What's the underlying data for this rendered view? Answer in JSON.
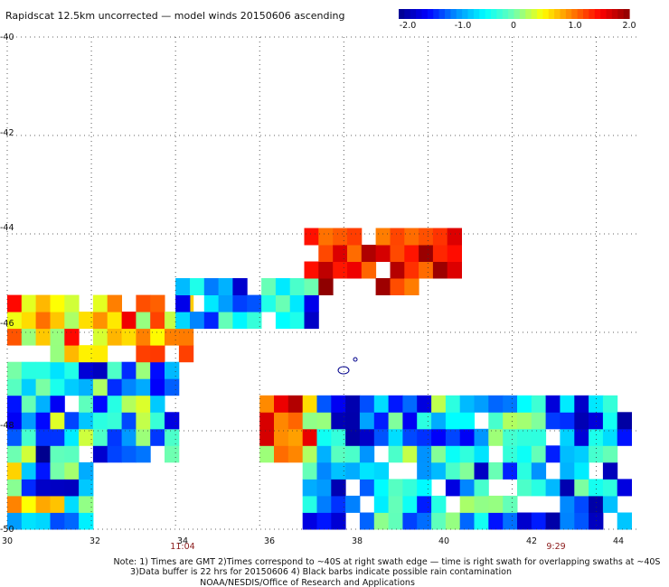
{
  "chart_data": {
    "type": "heatmap",
    "title": "Rapidscat 12.5km uncorrected — model winds 20150606 ascending",
    "xlim": [
      30,
      45
    ],
    "ylim": [
      -50,
      -40
    ],
    "x_ticks": [
      "30",
      "32",
      "34",
      "36",
      "38",
      "40",
      "42",
      "44"
    ],
    "y_ticks": [
      "-40",
      "-42",
      "-44",
      "-46",
      "-48",
      "-50"
    ],
    "grid": "dotted",
    "colorbar": {
      "range": [
        -2.0,
        2.0
      ],
      "tick_labels": [
        "-2.0",
        "-1.0",
        "0",
        "1.0",
        "2.0"
      ],
      "colors": [
        "#00008b",
        "#0000ff",
        "#0090ff",
        "#00ffff",
        "#70ffb0",
        "#ffff00",
        "#ff8000",
        "#ff0000",
        "#8b0000"
      ]
    },
    "time_labels": [
      {
        "lon": 34,
        "text": "11:04"
      },
      {
        "lon": 42,
        "text": "9:29"
      }
    ],
    "cell_size_deg": 0.34,
    "swaths": [
      {
        "name": "west",
        "lon_range": [
          30,
          34.2
        ],
        "bottom_cut": [
          [
            30,
            -50
          ],
          [
            31,
            -50
          ],
          [
            32,
            -49.6
          ],
          [
            33,
            -49.2
          ],
          [
            34,
            -48.6
          ]
        ],
        "regions": [
          {
            "lon_min": 30,
            "lon_max": 35,
            "lat_min": -46.6,
            "lat_max": -45.4,
            "mean": 0.8,
            "spread": 0.8
          },
          {
            "lon_min": 31.6,
            "lon_max": 34,
            "lat_min": -46.4,
            "lat_max": -45.9,
            "mean": 1.6,
            "spread": 0.4
          },
          {
            "lon_min": 30,
            "lon_max": 34,
            "lat_min": -48.6,
            "lat_max": -46.6,
            "mean": -0.8,
            "spread": 1.2
          },
          {
            "lon_min": 30,
            "lon_max": 32,
            "lat_min": -50,
            "lat_max": -48.6,
            "mean": -0.4,
            "spread": 1.4
          }
        ]
      },
      {
        "name": "central",
        "lon_range": [
          34,
          40.8
        ],
        "regions": [
          {
            "lon_min": 34,
            "lon_max": 37.5,
            "lat_min": -46,
            "lat_max": -45,
            "mean": -0.9,
            "spread": 0.9
          },
          {
            "lon_min": 37,
            "lon_max": 40.8,
            "lat_min": -45.2,
            "lat_max": -44,
            "mean": 1.5,
            "spread": 0.5
          }
        ]
      },
      {
        "name": "east",
        "lon_range": [
          36,
          45
        ],
        "lat_range": [
          -50,
          -47.2
        ],
        "regions": [
          {
            "lon_min": 36,
            "lon_max": 37.2,
            "lat_min": -48.5,
            "lat_max": -47.2,
            "mean": 1.0,
            "spread": 0.9
          },
          {
            "lon_min": 37,
            "lon_max": 45,
            "lat_min": -50,
            "lat_max": -47.2,
            "mean": -0.8,
            "spread": 1.1
          }
        ]
      }
    ],
    "notes": [
      "Note: 1) Times are GMT 2)Times correspond to ~40S at right swath edge — time is right swath for overlapping swaths at ~40S",
      "3)Data buffer is 22 hrs for 20150606 4) Black barbs indicate possible rain contamination",
      "NOAA/NESDIS/Office of Research and Applications"
    ]
  }
}
